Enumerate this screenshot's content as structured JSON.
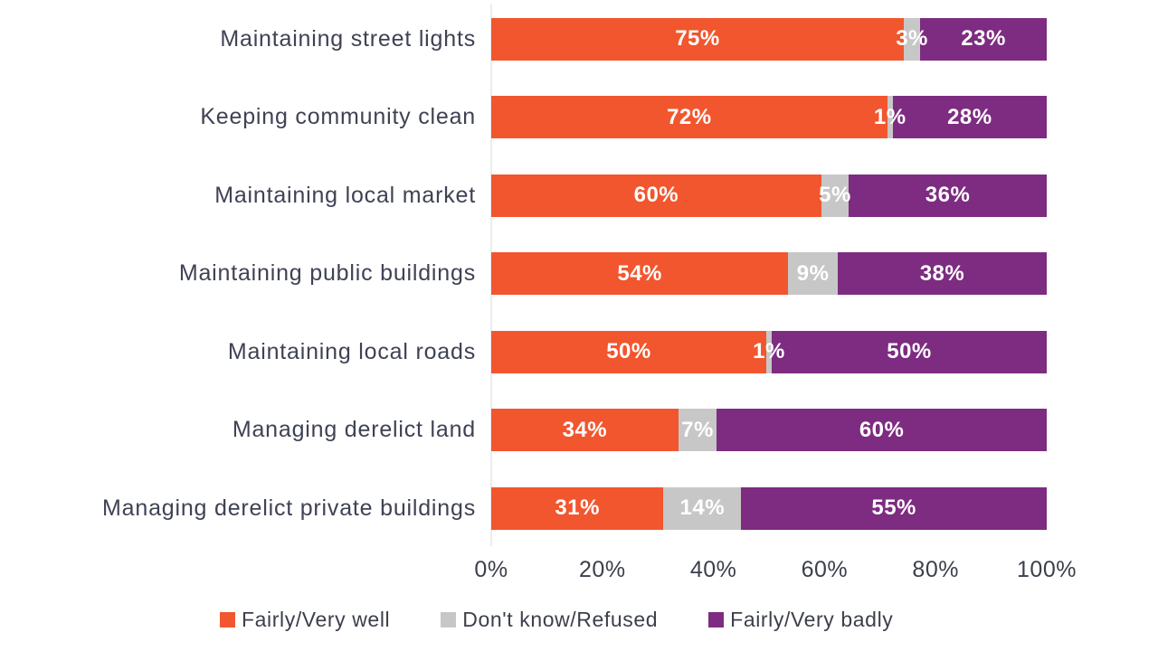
{
  "chart_data": {
    "type": "bar",
    "orientation": "horizontal_stacked",
    "title": "",
    "xlabel": "",
    "ylabel": "",
    "xlim": [
      0,
      100
    ],
    "grid": false,
    "legend_position": "bottom",
    "value_label_suffix": "%",
    "categories": [
      "Maintaining street lights",
      "Keeping community clean",
      "Maintaining local market",
      "Maintaining public buildings",
      "Maintaining local roads",
      "Managing derelict land",
      "Managing derelict private buildings"
    ],
    "series": [
      {
        "name": "Fairly/Very well",
        "color": "#F2562E",
        "values": [
          75,
          72,
          60,
          54,
          50,
          34,
          31
        ]
      },
      {
        "name": "Don't know/Refused",
        "color": "#C7C7C7",
        "values": [
          3,
          1,
          5,
          9,
          1,
          7,
          14
        ]
      },
      {
        "name": "Fairly/Very badly",
        "color": "#7D2C81",
        "values": [
          23,
          28,
          36,
          38,
          50,
          60,
          55
        ]
      }
    ],
    "x_ticks": [
      "0%",
      "20%",
      "40%",
      "60%",
      "80%",
      "100%"
    ]
  },
  "styles": {
    "background": "#ffffff",
    "category_label_color": "#3f4254",
    "tick_label_color": "#3c3f4b",
    "legend_label_color": "#3c3f4b",
    "value_label_color": "#ffffff",
    "axis_line_color": "#ececec"
  }
}
